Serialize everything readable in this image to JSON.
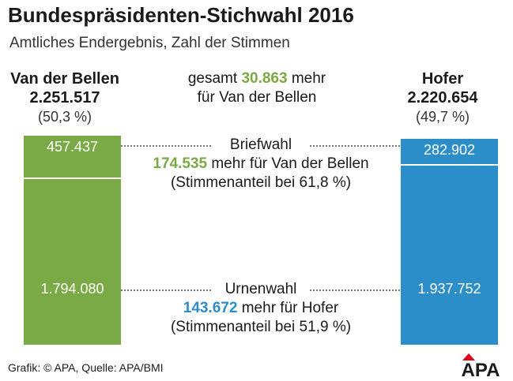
{
  "title": "Bundespräsidenten-Stichwahl 2016",
  "subtitle": "Amtliches Endergebnis, Zahl der Stimmen",
  "colors": {
    "green": "#7aaa45",
    "blue": "#2b8ec9"
  },
  "left_candidate": {
    "name": "Van der Bellen",
    "total": "2.251.517",
    "share": "(50,3 %)"
  },
  "right_candidate": {
    "name": "Hofer",
    "total": "2.220.654",
    "share": "(49,7 %)"
  },
  "overall_diff": {
    "prefix": "gesamt",
    "value": "30.863",
    "suffix": "mehr",
    "line2": "für Van der Bellen"
  },
  "briefwahl": {
    "label": "Briefwahl",
    "diff_value": "174.535",
    "diff_text": "mehr für Van der Bellen",
    "share_text": "(Stimmenanteil bei 61,8 %)"
  },
  "urnenwahl": {
    "label": "Urnenwahl",
    "diff_value": "143.672",
    "diff_text": "mehr für Hofer",
    "share_text": "(Stimmenanteil bei 51,9 %)"
  },
  "chart_data": {
    "type": "bar",
    "stacked": true,
    "categories": [
      "Van der Bellen",
      "Hofer"
    ],
    "series": [
      {
        "name": "Briefwahl",
        "values": [
          457437,
          282902
        ],
        "labels": [
          "457.437",
          "282.902"
        ]
      },
      {
        "name": "Urnenwahl",
        "values": [
          1794080,
          1937752
        ],
        "labels": [
          "1.794.080",
          "1.937.752"
        ]
      }
    ],
    "totals": [
      2251517,
      2220654
    ],
    "title": "Bundespräsidenten-Stichwahl 2016",
    "subtitle": "Amtliches Endergebnis, Zahl der Stimmen"
  },
  "footer": "Grafik: © APA, Quelle: APA/BMI",
  "logo_text": "APA"
}
